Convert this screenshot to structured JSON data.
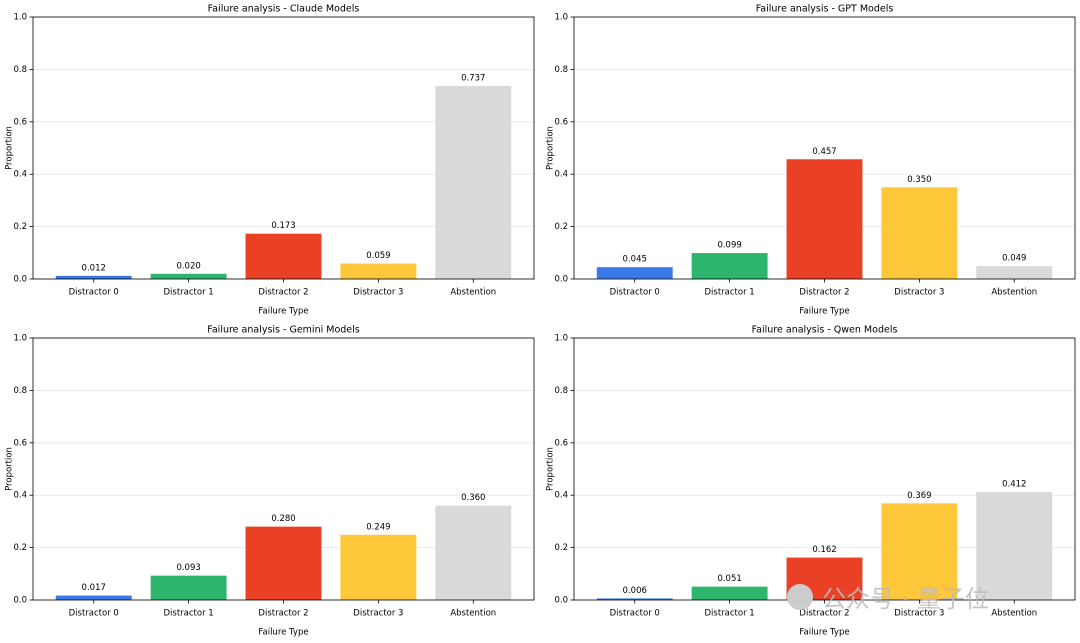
{
  "chart_data": [
    {
      "type": "bar",
      "title": "Failure analysis - Claude Models",
      "x_label": "Failure Type",
      "y_label": "Proportion",
      "categories": [
        "Distractor 0",
        "Distractor 1",
        "Distractor 2",
        "Distractor 3",
        "Abstention"
      ],
      "values": [
        0.012,
        0.02,
        0.173,
        0.059,
        0.737
      ],
      "value_labels": [
        "0.012",
        "0.020",
        "0.173",
        "0.059",
        "0.737"
      ],
      "colors": [
        "#3b78e7",
        "#2db56d",
        "#ea4126",
        "#ffc73a",
        "#d9d9d9"
      ],
      "ylim": [
        0,
        1
      ],
      "yticks": [
        {
          "value": 0,
          "label": "0.0"
        },
        0.2,
        0.4,
        0.6,
        0.8,
        {
          "value": 1,
          "label": "1.0"
        }
      ],
      "grid": true
    },
    {
      "type": "bar",
      "title": "Failure analysis - GPT Models",
      "x_label": "Failure Type",
      "y_label": "Proportion",
      "categories": [
        "Distractor 0",
        "Distractor 1",
        "Distractor 2",
        "Distractor 3",
        "Abstention"
      ],
      "values": [
        0.045,
        0.099,
        0.457,
        0.35,
        0.049
      ],
      "value_labels": [
        "0.045",
        "0.099",
        "0.457",
        "0.350",
        "0.049"
      ],
      "colors": [
        "#3b78e7",
        "#2db56d",
        "#ea4126",
        "#ffc73a",
        "#d9d9d9"
      ],
      "ylim": [
        0,
        1
      ],
      "yticks": [
        {
          "value": 0,
          "label": "0.0"
        },
        0.2,
        0.4,
        0.6,
        0.8,
        {
          "value": 1,
          "label": "1.0"
        }
      ],
      "grid": true
    },
    {
      "type": "bar",
      "title": "Failure analysis - Gemini Models",
      "x_label": "Failure Type",
      "y_label": "Proportion",
      "categories": [
        "Distractor 0",
        "Distractor 1",
        "Distractor 2",
        "Distractor 3",
        "Abstention"
      ],
      "values": [
        0.017,
        0.093,
        0.28,
        0.249,
        0.36
      ],
      "value_labels": [
        "0.017",
        "0.093",
        "0.280",
        "0.249",
        "0.360"
      ],
      "colors": [
        "#3b78e7",
        "#2db56d",
        "#ea4126",
        "#ffc73a",
        "#d9d9d9"
      ],
      "ylim": [
        0,
        1
      ],
      "yticks": [
        {
          "value": 0,
          "label": "0.0"
        },
        0.2,
        0.4,
        0.6,
        0.8,
        {
          "value": 1,
          "label": "1.0"
        }
      ],
      "grid": true
    },
    {
      "type": "bar",
      "title": "Failure analysis - Qwen Models",
      "x_label": "Failure Type",
      "y_label": "Proportion",
      "categories": [
        "Distractor 0",
        "Distractor 1",
        "Distractor 2",
        "Distractor 3",
        "Abstention"
      ],
      "values": [
        0.006,
        0.051,
        0.162,
        0.369,
        0.412
      ],
      "value_labels": [
        "0.006",
        "0.051",
        "0.162",
        "0.369",
        "0.412"
      ],
      "colors": [
        "#3b78e7",
        "#2db56d",
        "#ea4126",
        "#ffc73a",
        "#d9d9d9"
      ],
      "ylim": [
        0,
        1
      ],
      "yticks": [
        {
          "value": 0,
          "label": "0.0"
        },
        0.2,
        0.4,
        0.6,
        0.8,
        {
          "value": 1,
          "label": "1.0"
        }
      ],
      "grid": true
    }
  ],
  "watermark": "公众号 · 量子位"
}
